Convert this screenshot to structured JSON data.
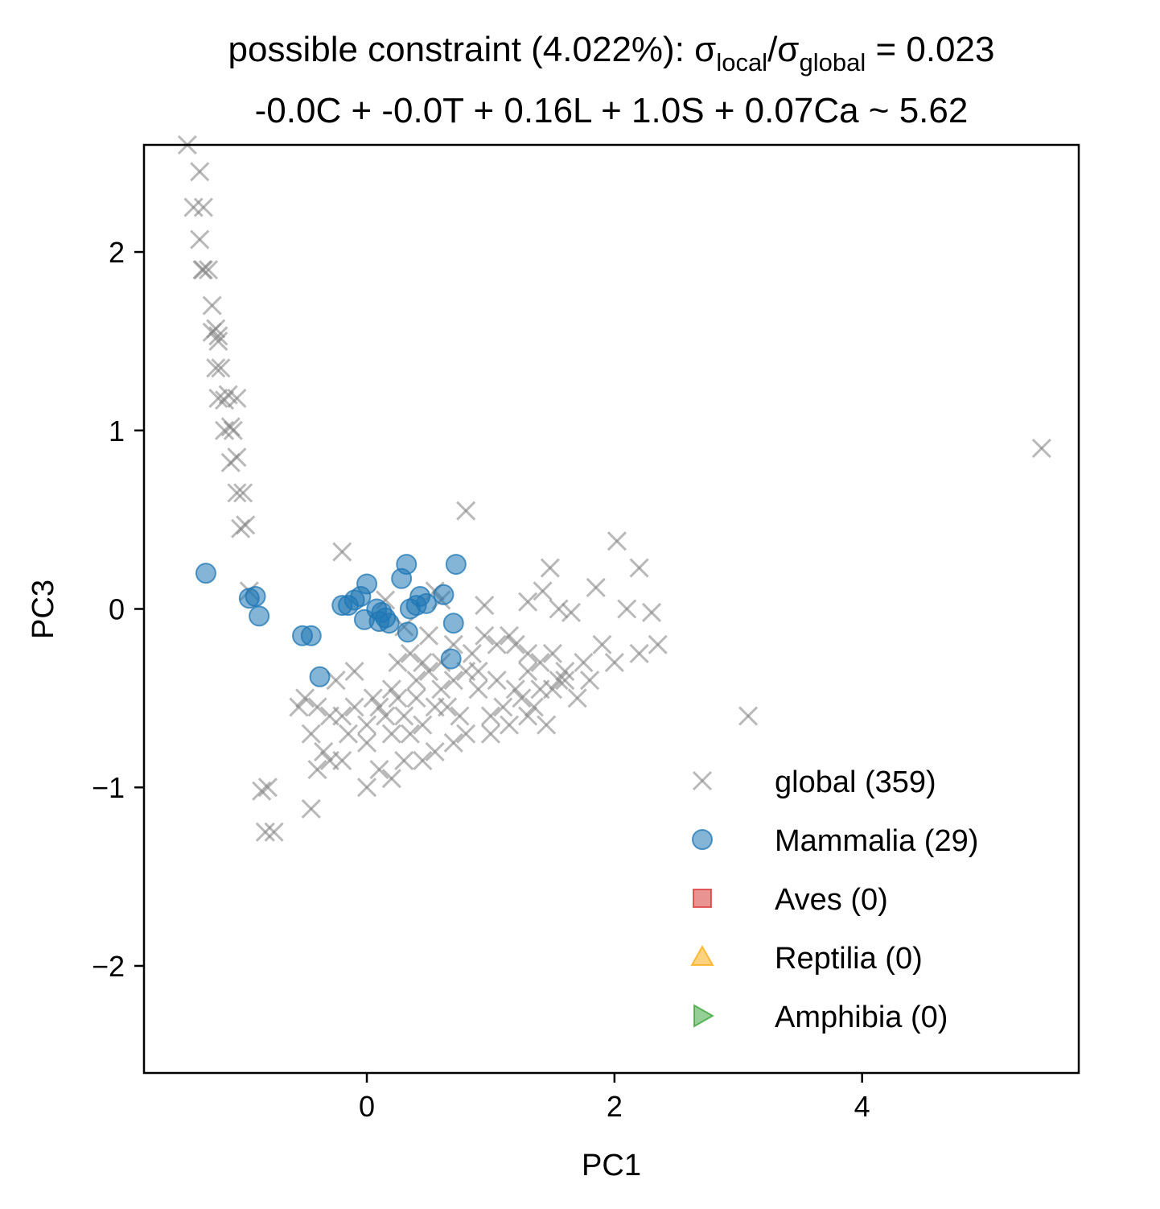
{
  "chart_data": {
    "type": "scatter",
    "title": {
      "prefix": "possible constraint (4.022%): σ",
      "sub1": "local",
      "mid": "/σ",
      "sub2": "global",
      "suffix": " = 0.023"
    },
    "subtitle": "-0.0C + -0.0T + 0.16L + 1.0S + 0.07Ca ~ 5.62",
    "xlabel": "PC1",
    "ylabel": "PC3",
    "xlim": [
      -1.8,
      5.75
    ],
    "ylim": [
      -2.6,
      2.6
    ],
    "xticks": [
      0,
      2,
      4
    ],
    "yticks": [
      2,
      1,
      0,
      -1,
      -2
    ],
    "ytick_labels": [
      "2",
      "1",
      "0",
      "−1",
      "−2"
    ],
    "grid": false,
    "legend_position": "lower-right",
    "series": [
      {
        "name": "global (359)",
        "marker": "x",
        "color": "#808080",
        "points": [
          [
            -1.45,
            2.6
          ],
          [
            -1.35,
            2.45
          ],
          [
            -1.4,
            2.25
          ],
          [
            -1.32,
            2.25
          ],
          [
            -1.35,
            2.07
          ],
          [
            -1.33,
            1.9
          ],
          [
            -1.28,
            1.9
          ],
          [
            -1.25,
            1.7
          ],
          [
            -1.25,
            1.55
          ],
          [
            -1.2,
            1.53
          ],
          [
            -1.22,
            1.35
          ],
          [
            -1.18,
            1.35
          ],
          [
            -1.2,
            1.18
          ],
          [
            -1.15,
            1.17
          ],
          [
            -1.12,
            1.2
          ],
          [
            -1.1,
            1.02
          ],
          [
            -1.15,
            1.0
          ],
          [
            -1.08,
            1.0
          ],
          [
            -1.1,
            0.82
          ],
          [
            -1.05,
            0.85
          ],
          [
            -1.05,
            0.65
          ],
          [
            -1.0,
            0.65
          ],
          [
            -1.02,
            0.45
          ],
          [
            -0.98,
            0.47
          ],
          [
            -0.95,
            0.1
          ],
          [
            -0.85,
            -1.02
          ],
          [
            -0.8,
            -1.0
          ],
          [
            -0.82,
            -1.25
          ],
          [
            -0.75,
            -1.25
          ],
          [
            -1.22,
            1.57
          ],
          [
            -1.05,
            1.18
          ],
          [
            -1.32,
            1.9
          ],
          [
            -1.2,
            1.5
          ],
          [
            0.8,
            0.55
          ],
          [
            -0.2,
            0.32
          ],
          [
            2.02,
            0.38
          ],
          [
            1.48,
            0.23
          ],
          [
            2.2,
            0.23
          ],
          [
            1.85,
            0.12
          ],
          [
            1.3,
            0.04
          ],
          [
            1.42,
            0.1
          ],
          [
            0.55,
            0.1
          ],
          [
            0.95,
            0.02
          ],
          [
            1.55,
            0.0
          ],
          [
            1.65,
            -0.02
          ],
          [
            2.1,
            0.0
          ],
          [
            2.3,
            -0.02
          ],
          [
            0.15,
            0.05
          ],
          [
            0.6,
            0.05
          ],
          [
            0.3,
            -0.1
          ],
          [
            0.5,
            -0.15
          ],
          [
            0.7,
            -0.2
          ],
          [
            0.85,
            -0.25
          ],
          [
            0.95,
            -0.15
          ],
          [
            1.05,
            -0.2
          ],
          [
            1.15,
            -0.15
          ],
          [
            1.2,
            -0.2
          ],
          [
            1.3,
            -0.25
          ],
          [
            1.4,
            -0.3
          ],
          [
            1.5,
            -0.25
          ],
          [
            1.6,
            -0.35
          ],
          [
            1.75,
            -0.3
          ],
          [
            1.9,
            -0.2
          ],
          [
            2.0,
            -0.3
          ],
          [
            2.2,
            -0.25
          ],
          [
            2.35,
            -0.2
          ],
          [
            1.8,
            -0.4
          ],
          [
            1.7,
            -0.5
          ],
          [
            1.55,
            -0.4
          ],
          [
            1.4,
            -0.45
          ],
          [
            1.25,
            -0.5
          ],
          [
            1.1,
            -0.55
          ],
          [
            1.0,
            -0.6
          ],
          [
            0.9,
            -0.45
          ],
          [
            0.8,
            -0.35
          ],
          [
            0.7,
            -0.4
          ],
          [
            0.6,
            -0.45
          ],
          [
            0.5,
            -0.35
          ],
          [
            0.4,
            -0.5
          ],
          [
            0.3,
            -0.6
          ],
          [
            0.2,
            -0.45
          ],
          [
            0.1,
            -0.55
          ],
          [
            0.0,
            -0.65
          ],
          [
            -0.1,
            -0.55
          ],
          [
            -0.2,
            -0.6
          ],
          [
            -0.3,
            -0.6
          ],
          [
            -0.4,
            -0.55
          ],
          [
            -0.5,
            -0.5
          ],
          [
            -0.55,
            -0.55
          ],
          [
            -0.45,
            -0.7
          ],
          [
            -0.35,
            -0.8
          ],
          [
            -0.3,
            -0.85
          ],
          [
            -0.4,
            -0.9
          ],
          [
            -0.2,
            -0.85
          ],
          [
            -0.45,
            -1.12
          ],
          [
            0.0,
            -1.0
          ],
          [
            0.1,
            -0.9
          ],
          [
            0.2,
            -0.95
          ],
          [
            0.3,
            -0.85
          ],
          [
            0.45,
            -0.85
          ],
          [
            0.55,
            -0.8
          ],
          [
            0.7,
            -0.75
          ],
          [
            0.8,
            -0.7
          ],
          [
            1.0,
            -0.7
          ],
          [
            1.15,
            -0.65
          ],
          [
            1.3,
            -0.6
          ],
          [
            1.45,
            -0.65
          ],
          [
            1.35,
            -0.55
          ],
          [
            1.5,
            -0.45
          ],
          [
            1.6,
            -0.4
          ],
          [
            0.25,
            -0.3
          ],
          [
            0.35,
            -0.25
          ],
          [
            0.45,
            -0.3
          ],
          [
            0.6,
            -0.3
          ],
          [
            0.2,
            -0.7
          ],
          [
            0.35,
            -0.7
          ],
          [
            0.45,
            -0.65
          ],
          [
            0.55,
            -0.55
          ],
          [
            0.0,
            -0.75
          ],
          [
            -0.15,
            -0.7
          ],
          [
            -0.25,
            -0.4
          ],
          [
            -0.1,
            -0.35
          ],
          [
            0.05,
            -0.5
          ],
          [
            0.15,
            -0.6
          ],
          [
            0.25,
            -0.5
          ],
          [
            0.4,
            -0.4
          ],
          [
            0.65,
            -0.55
          ],
          [
            0.75,
            -0.6
          ],
          [
            0.9,
            -0.35
          ],
          [
            1.05,
            -0.4
          ],
          [
            1.2,
            -0.45
          ],
          [
            1.3,
            -0.35
          ],
          [
            3.08,
            -0.6
          ],
          [
            5.45,
            0.9
          ]
        ]
      },
      {
        "name": "Mammalia (29)",
        "marker": "o",
        "color": "#1f77b4",
        "points": [
          [
            -1.3,
            0.2
          ],
          [
            -0.95,
            0.06
          ],
          [
            -0.9,
            0.07
          ],
          [
            -0.87,
            -0.04
          ],
          [
            -0.52,
            -0.15
          ],
          [
            -0.45,
            -0.15
          ],
          [
            -0.38,
            -0.38
          ],
          [
            -0.2,
            0.02
          ],
          [
            -0.15,
            0.02
          ],
          [
            -0.1,
            0.05
          ],
          [
            -0.05,
            0.07
          ],
          [
            0.0,
            0.14
          ],
          [
            -0.02,
            -0.06
          ],
          [
            0.08,
            0.0
          ],
          [
            0.1,
            -0.07
          ],
          [
            0.12,
            -0.02
          ],
          [
            0.15,
            -0.05
          ],
          [
            0.18,
            -0.08
          ],
          [
            0.28,
            0.17
          ],
          [
            0.32,
            0.25
          ],
          [
            0.33,
            -0.13
          ],
          [
            0.35,
            0.0
          ],
          [
            0.4,
            0.02
          ],
          [
            0.43,
            0.07
          ],
          [
            0.48,
            0.03
          ],
          [
            0.62,
            0.08
          ],
          [
            0.68,
            -0.28
          ],
          [
            0.7,
            -0.08
          ],
          [
            0.72,
            0.25
          ]
        ]
      },
      {
        "name": "Aves (0)",
        "marker": "s",
        "color": "#d62728",
        "points": []
      },
      {
        "name": "Reptilia (0)",
        "marker": "^",
        "color": "#ff7f0e",
        "points": []
      },
      {
        "name": "Amphibia (0)",
        "marker": ">",
        "color": "#2ca02c",
        "points": []
      }
    ],
    "legend": [
      {
        "label": "global (359)",
        "marker": "x",
        "color": "#808080"
      },
      {
        "label": "Mammalia (29)",
        "marker": "o",
        "color": "#1f77b4"
      },
      {
        "label": "Aves (0)",
        "marker": "s",
        "color": "#d62728"
      },
      {
        "label": "Reptilia (0)",
        "marker": "^",
        "color": "#ffa500"
      },
      {
        "label": "Amphibia (0)",
        "marker": ">",
        "color": "#2ca02c"
      }
    ]
  }
}
